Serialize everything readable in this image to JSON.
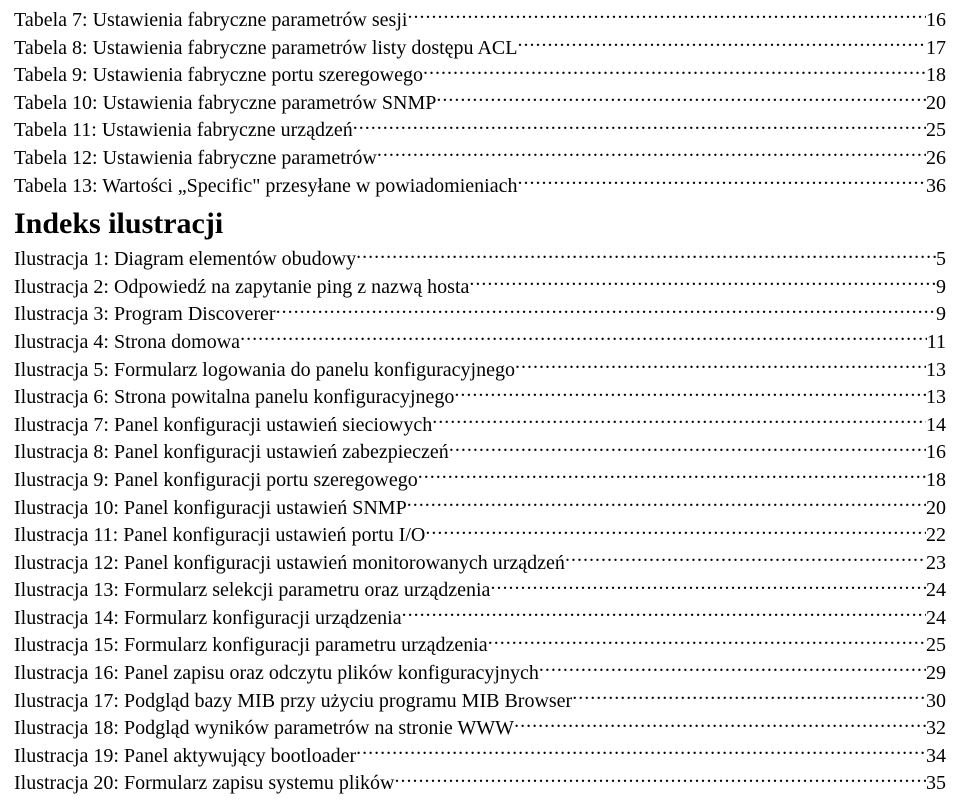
{
  "toc_tables": [
    {
      "label": "Tabela 7: Ustawienia fabryczne parametrów sesji",
      "page": "16"
    },
    {
      "label": "Tabela 8: Ustawienia fabryczne parametrów listy dostępu ACL",
      "page": "17"
    },
    {
      "label": "Tabela 9: Ustawienia fabryczne portu szeregowego",
      "page": "18"
    },
    {
      "label": "Tabela 10: Ustawienia fabryczne parametrów SNMP",
      "page": "20"
    },
    {
      "label": "Tabela 11: Ustawienia fabryczne urządzeń",
      "page": "25"
    },
    {
      "label": "Tabela 12: Ustawienia fabryczne parametrów",
      "page": "26"
    },
    {
      "label": "Tabela 13: Wartości „Specific\" przesyłane w powiadomieniach",
      "page": "36"
    }
  ],
  "illustration_heading": "Indeks ilustracji",
  "toc_illustrations": [
    {
      "label": "Ilustracja 1: Diagram elementów obudowy",
      "page": "5"
    },
    {
      "label": "Ilustracja 2: Odpowiedź na zapytanie ping z nazwą hosta",
      "page": "9"
    },
    {
      "label": "Ilustracja 3: Program Discoverer",
      "page": "9"
    },
    {
      "label": "Ilustracja 4: Strona domowa",
      "page": "11"
    },
    {
      "label": "Ilustracja 5: Formularz logowania do panelu konfiguracyjnego",
      "page": "13"
    },
    {
      "label": "Ilustracja 6: Strona powitalna panelu konfiguracyjnego",
      "page": "13"
    },
    {
      "label": "Ilustracja 7: Panel konfiguracji ustawień sieciowych",
      "page": "14"
    },
    {
      "label": "Ilustracja 8: Panel konfiguracji ustawień zabezpieczeń",
      "page": "16"
    },
    {
      "label": "Ilustracja 9: Panel konfiguracji portu szeregowego",
      "page": "18"
    },
    {
      "label": "Ilustracja 10: Panel konfiguracji ustawień SNMP",
      "page": "20"
    },
    {
      "label": "Ilustracja 11: Panel konfiguracji ustawień portu I/O",
      "page": "22"
    },
    {
      "label": "Ilustracja 12: Panel konfiguracji ustawień monitorowanych urządzeń",
      "page": "23"
    },
    {
      "label": "Ilustracja 13: Formularz selekcji parametru oraz urządzenia",
      "page": "24"
    },
    {
      "label": "Ilustracja 14: Formularz konfiguracji urządzenia",
      "page": "24"
    },
    {
      "label": "Ilustracja 15: Formularz konfiguracji parametru urządzenia",
      "page": "25"
    },
    {
      "label": "Ilustracja 16: Panel zapisu oraz odczytu plików konfiguracyjnych",
      "page": "29"
    },
    {
      "label": "Ilustracja 17: Podgląd bazy MIB przy użyciu programu MIB Browser",
      "page": "30"
    },
    {
      "label": "Ilustracja 18: Podgląd wyników parametrów na stronie WWW",
      "page": "32"
    },
    {
      "label": "Ilustracja 19: Panel aktywujący bootloader",
      "page": "34"
    },
    {
      "label": "Ilustracja 20: Formularz zapisu systemu plików",
      "page": "35"
    }
  ]
}
